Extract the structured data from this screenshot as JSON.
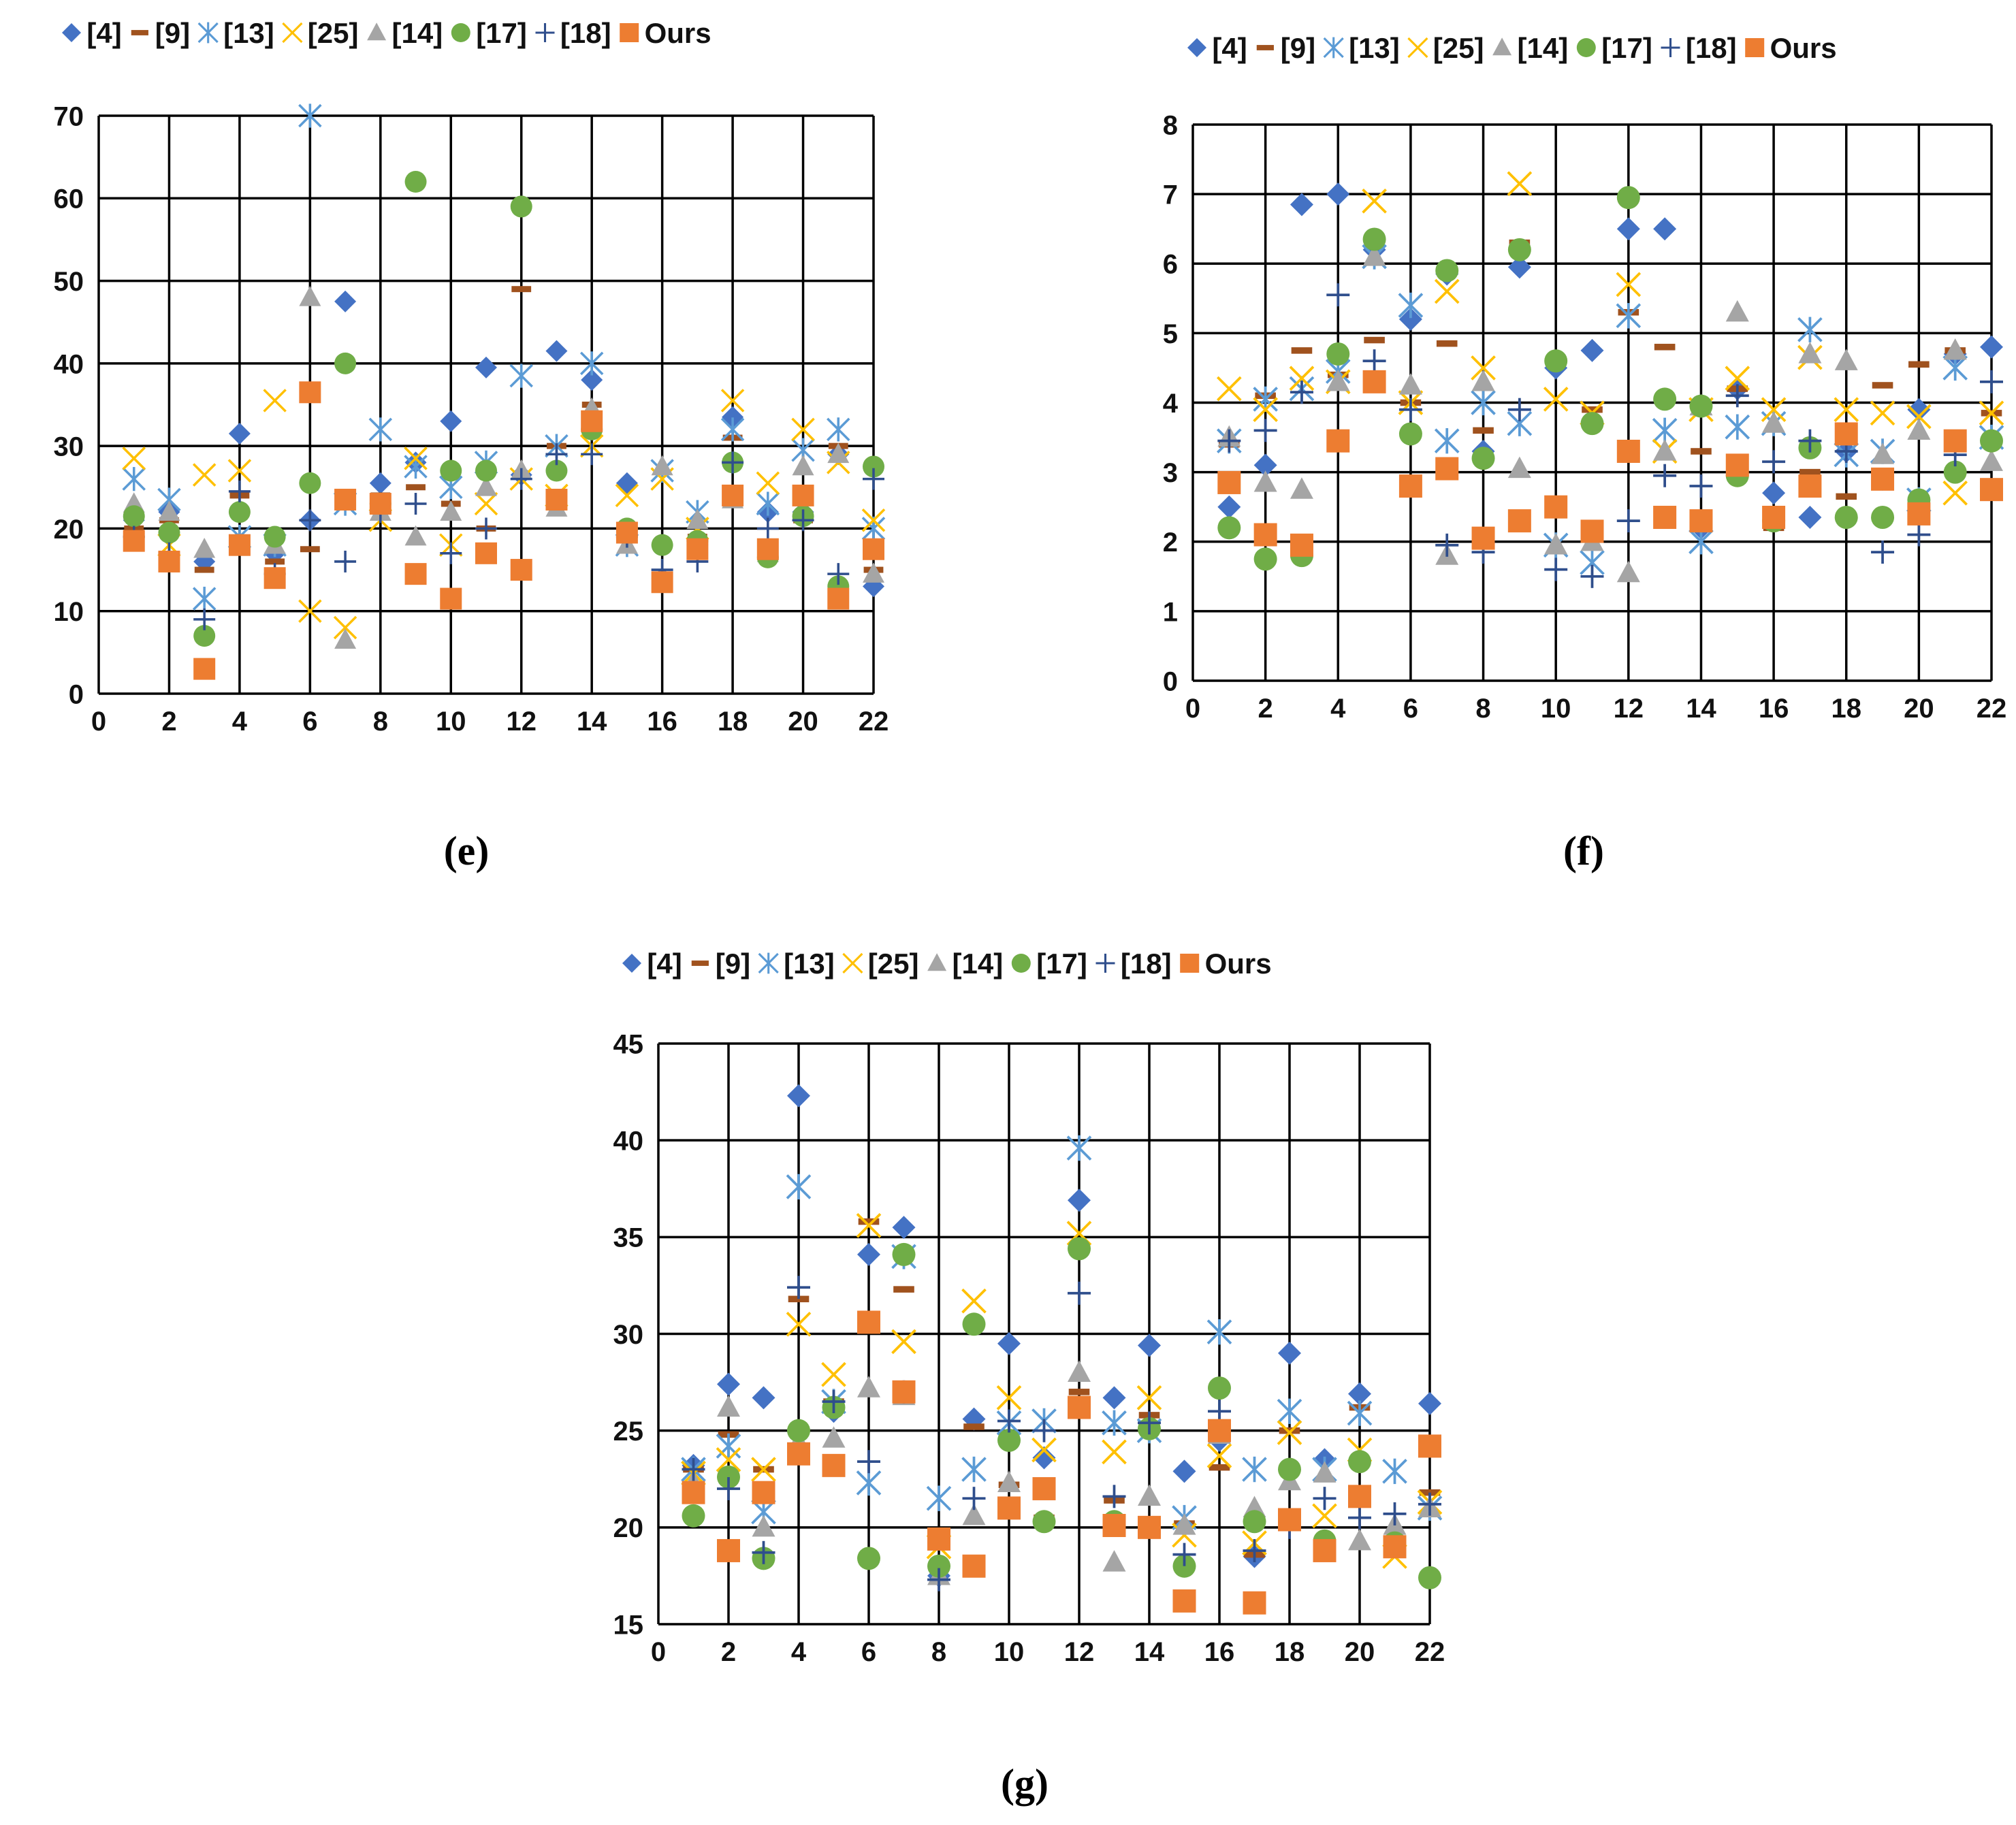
{
  "figure": {
    "caption_e": "(e)",
    "caption_f": "(f)",
    "caption_g": "(g)"
  },
  "legend": {
    "items": [
      {
        "label": "[4]",
        "marker": "diamond",
        "color": "#4472C4"
      },
      {
        "label": "[9]",
        "marker": "dash",
        "color": "#A0521E"
      },
      {
        "label": "[13]",
        "marker": "star",
        "color": "#5B9BD5"
      },
      {
        "label": "[25]",
        "marker": "x",
        "color": "#FFC000"
      },
      {
        "label": "[14]",
        "marker": "triangle",
        "color": "#A5A5A5"
      },
      {
        "label": "[17]",
        "marker": "circle",
        "color": "#70AD47"
      },
      {
        "label": "[18]",
        "marker": "plus",
        "color": "#2F4E8C"
      },
      {
        "label": "Ours",
        "marker": "square",
        "color": "#ED7D31"
      }
    ]
  },
  "chart_data": [
    {
      "id": "e",
      "type": "scatter",
      "title": "",
      "xlabel": "",
      "ylabel": "",
      "xlim": [
        0,
        22
      ],
      "ylim": [
        0,
        70
      ],
      "xticks": [
        0,
        2,
        4,
        6,
        8,
        10,
        12,
        14,
        16,
        18,
        20,
        22
      ],
      "yticks": [
        0,
        10,
        20,
        30,
        40,
        50,
        60,
        70
      ],
      "grid": true,
      "legend_position": "top",
      "x": [
        1,
        2,
        3,
        4,
        5,
        6,
        7,
        8,
        9,
        10,
        11,
        12,
        13,
        14,
        15,
        16,
        17,
        18,
        19,
        20,
        21,
        22
      ],
      "series": [
        {
          "name": "[4]",
          "values": [
            21,
            22,
            16,
            31.5,
            17,
            21,
            47.5,
            25.5,
            28,
            33,
            39.5,
            26.5,
            41.5,
            38,
            25.5,
            14,
            18,
            33.5,
            22,
            22,
            29,
            13
          ]
        },
        {
          "name": "[9]",
          "values": [
            20,
            21,
            15,
            24,
            16,
            17.5,
            23,
            24,
            25,
            23,
            20,
            49,
            30,
            35,
            20,
            14,
            19,
            31,
            18,
            21,
            30,
            15
          ]
        },
        {
          "name": "[13]",
          "values": [
            26,
            23.5,
            11.5,
            19,
            18,
            70,
            23,
            32,
            27.5,
            25,
            28,
            38.5,
            30,
            40,
            18,
            27,
            22,
            32,
            23,
            29.5,
            32,
            20
          ]
        },
        {
          "name": "[25]",
          "values": [
            28.5,
            18,
            26.5,
            27,
            35.5,
            10,
            8,
            21,
            28.5,
            18,
            23,
            26,
            24,
            30,
            24,
            26,
            20,
            35.5,
            25.5,
            32,
            28,
            21
          ]
        },
        {
          "name": "[14]",
          "values": [
            23,
            22,
            17.5,
            18,
            18,
            48,
            6.5,
            22,
            19,
            22,
            25,
            27,
            22.5,
            34.5,
            18,
            27.5,
            21,
            23.5,
            17,
            27.5,
            29,
            14.5
          ]
        },
        {
          "name": "[17]",
          "values": [
            21.5,
            19.5,
            7,
            22,
            19,
            25.5,
            40,
            23,
            62,
            27,
            27,
            59,
            27,
            32,
            20,
            18,
            18.5,
            28,
            16.5,
            21.5,
            13,
            27.5
          ]
        },
        {
          "name": "[18]",
          "values": [
            19,
            17,
            9,
            24.5,
            14.5,
            21,
            16,
            22,
            23,
            17,
            20,
            26,
            29,
            29,
            19,
            15,
            16,
            28,
            20,
            21,
            14.5,
            26
          ]
        },
        {
          "name": "Ours",
          "values": [
            18.5,
            16,
            3,
            18,
            14,
            36.5,
            23.5,
            23,
            14.5,
            11.5,
            17,
            15,
            23.5,
            33,
            19.5,
            13.5,
            17.5,
            24,
            17.5,
            24,
            11.5,
            17.5
          ]
        }
      ]
    },
    {
      "id": "f",
      "type": "scatter",
      "title": "",
      "xlabel": "",
      "ylabel": "",
      "xlim": [
        0,
        22
      ],
      "ylim": [
        0,
        8
      ],
      "xticks": [
        0,
        2,
        4,
        6,
        8,
        10,
        12,
        14,
        16,
        18,
        20,
        22
      ],
      "yticks": [
        0,
        1,
        2,
        3,
        4,
        5,
        6,
        7,
        8
      ],
      "grid": true,
      "legend_position": "top",
      "x": [
        1,
        2,
        3,
        4,
        5,
        6,
        7,
        8,
        9,
        10,
        11,
        12,
        13,
        14,
        15,
        16,
        17,
        18,
        19,
        20,
        21,
        22
      ],
      "series": [
        {
          "name": "[4]",
          "values": [
            2.5,
            3.1,
            6.85,
            7,
            6.2,
            5.2,
            5.85,
            3.3,
            5.95,
            4.5,
            4.75,
            6.5,
            6.5,
            2.2,
            4.2,
            2.7,
            2.35,
            3.3,
            2.9,
            3.9,
            4.7,
            4.8
          ]
        },
        {
          "name": "[9]",
          "values": [
            3.4,
            4.1,
            4.75,
            4.4,
            4.9,
            4,
            4.85,
            3.6,
            6.3,
            4.6,
            3.9,
            5.3,
            4.8,
            3.3,
            4.2,
            2.2,
            3,
            2.65,
            4.25,
            4.55,
            4.75,
            3.85
          ]
        },
        {
          "name": "[13]",
          "values": [
            3.45,
            4.05,
            4.2,
            4.45,
            6.1,
            5.4,
            3.45,
            4,
            3.7,
            1.95,
            1.7,
            5.25,
            3.6,
            2,
            3.65,
            3.7,
            5.05,
            3.25,
            3.3,
            2.6,
            4.5,
            3.5
          ]
        },
        {
          "name": "[25]",
          "values": [
            4.2,
            3.9,
            4.35,
            4.3,
            6.9,
            4,
            5.6,
            4.5,
            7.15,
            4.05,
            3.85,
            5.7,
            3.3,
            3.9,
            4.35,
            3.9,
            4.65,
            3.9,
            3.85,
            3.8,
            2.7,
            3.85
          ]
        },
        {
          "name": "[14]",
          "values": [
            3.5,
            2.85,
            2.75,
            4.3,
            6.1,
            4.25,
            1.8,
            4.3,
            3.05,
            1.95,
            2,
            1.55,
            3.3,
            3.95,
            5.3,
            3.7,
            4.7,
            4.6,
            3.25,
            3.6,
            4.75,
            3.15
          ]
        },
        {
          "name": "[17]",
          "values": [
            2.2,
            1.75,
            1.8,
            4.7,
            6.35,
            3.55,
            5.9,
            3.2,
            6.2,
            4.6,
            3.7,
            6.95,
            4.05,
            3.95,
            2.95,
            2.3,
            3.35,
            2.35,
            2.35,
            2.6,
            3,
            3.45
          ]
        },
        {
          "name": "[18]",
          "values": [
            3.45,
            3.6,
            4.15,
            5.55,
            4.6,
            3.9,
            1.95,
            1.85,
            3.9,
            1.6,
            1.5,
            2.3,
            2.95,
            2.8,
            4.1,
            3.15,
            3.45,
            3.3,
            1.85,
            2.1,
            3.25,
            4.3
          ]
        },
        {
          "name": "Ours",
          "values": [
            2.85,
            2.1,
            1.95,
            3.45,
            4.3,
            2.8,
            3.05,
            2.05,
            2.3,
            2.5,
            2.15,
            3.3,
            2.35,
            2.3,
            3.1,
            2.35,
            2.8,
            3.55,
            2.9,
            2.4,
            3.45,
            2.75
          ]
        }
      ]
    },
    {
      "id": "g",
      "type": "scatter",
      "title": "",
      "xlabel": "",
      "ylabel": "",
      "xlim": [
        0,
        22
      ],
      "ylim": [
        15,
        45
      ],
      "xticks": [
        0,
        2,
        4,
        6,
        8,
        10,
        12,
        14,
        16,
        18,
        20,
        22
      ],
      "yticks": [
        15,
        20,
        25,
        30,
        35,
        40,
        45
      ],
      "grid": true,
      "legend_position": "top",
      "x": [
        1,
        2,
        3,
        4,
        5,
        6,
        7,
        8,
        9,
        10,
        11,
        12,
        13,
        14,
        15,
        16,
        17,
        18,
        19,
        20,
        21,
        22
      ],
      "series": [
        {
          "name": "[4]",
          "values": [
            23.2,
            27.4,
            26.7,
            42.3,
            26,
            34.1,
            35.5,
            17.5,
            25.6,
            29.5,
            23.6,
            36.9,
            26.7,
            29.4,
            22.9,
            24.5,
            18.5,
            29,
            23.5,
            26.9,
            19,
            26.4
          ]
        },
        {
          "name": "[9]",
          "values": [
            23,
            24.8,
            23,
            31.8,
            26.5,
            35.8,
            32.3,
            18,
            25.2,
            22.2,
            20.5,
            27,
            21.4,
            25.8,
            20.2,
            23.1,
            18.6,
            25,
            18.8,
            26.2,
            19,
            21.8
          ]
        },
        {
          "name": "[13]",
          "values": [
            23,
            24.2,
            20.8,
            37.6,
            26.5,
            22.3,
            34,
            21.5,
            23,
            25.4,
            25.5,
            39.6,
            25.4,
            25,
            20.5,
            30.1,
            23,
            26,
            23,
            25.9,
            22.9,
            21
          ]
        },
        {
          "name": "[25]",
          "values": [
            22.8,
            23.5,
            23,
            30.5,
            27.9,
            35.6,
            29.6,
            19,
            31.7,
            26.7,
            24,
            35.2,
            23.9,
            26.7,
            19.6,
            23.7,
            19.2,
            24.9,
            20.6,
            24,
            18.5,
            21.3
          ]
        },
        {
          "name": "[14]",
          "values": [
            22.3,
            26.2,
            20,
            24.4,
            24.6,
            27.2,
            26.8,
            17.5,
            20.6,
            22.3,
            21.9,
            28,
            18.2,
            21.6,
            20.1,
            24.8,
            21,
            22.4,
            22.8,
            19.3,
            20.1,
            21
          ]
        },
        {
          "name": "[17]",
          "values": [
            20.6,
            22.6,
            18.4,
            25,
            26.2,
            18.4,
            34.1,
            18,
            30.5,
            24.5,
            20.3,
            34.4,
            20.3,
            25.1,
            18,
            27.2,
            20.3,
            23,
            19.3,
            23.4,
            19.2,
            17.4
          ]
        },
        {
          "name": "[18]",
          "values": [
            23,
            22,
            18.7,
            32.4,
            26.5,
            23.4,
            27,
            17.3,
            21.5,
            25.5,
            25,
            32.1,
            21.6,
            25.4,
            18.6,
            26,
            18.8,
            20,
            21.5,
            20.5,
            20.7,
            21.2
          ]
        },
        {
          "name": "Ours",
          "values": [
            21.8,
            18.8,
            21.8,
            23.8,
            23.2,
            30.6,
            27,
            19.4,
            18,
            21,
            22,
            26.2,
            20.1,
            20,
            16.2,
            25,
            16.1,
            20.4,
            18.8,
            21.6,
            19,
            24.2
          ]
        }
      ]
    }
  ]
}
